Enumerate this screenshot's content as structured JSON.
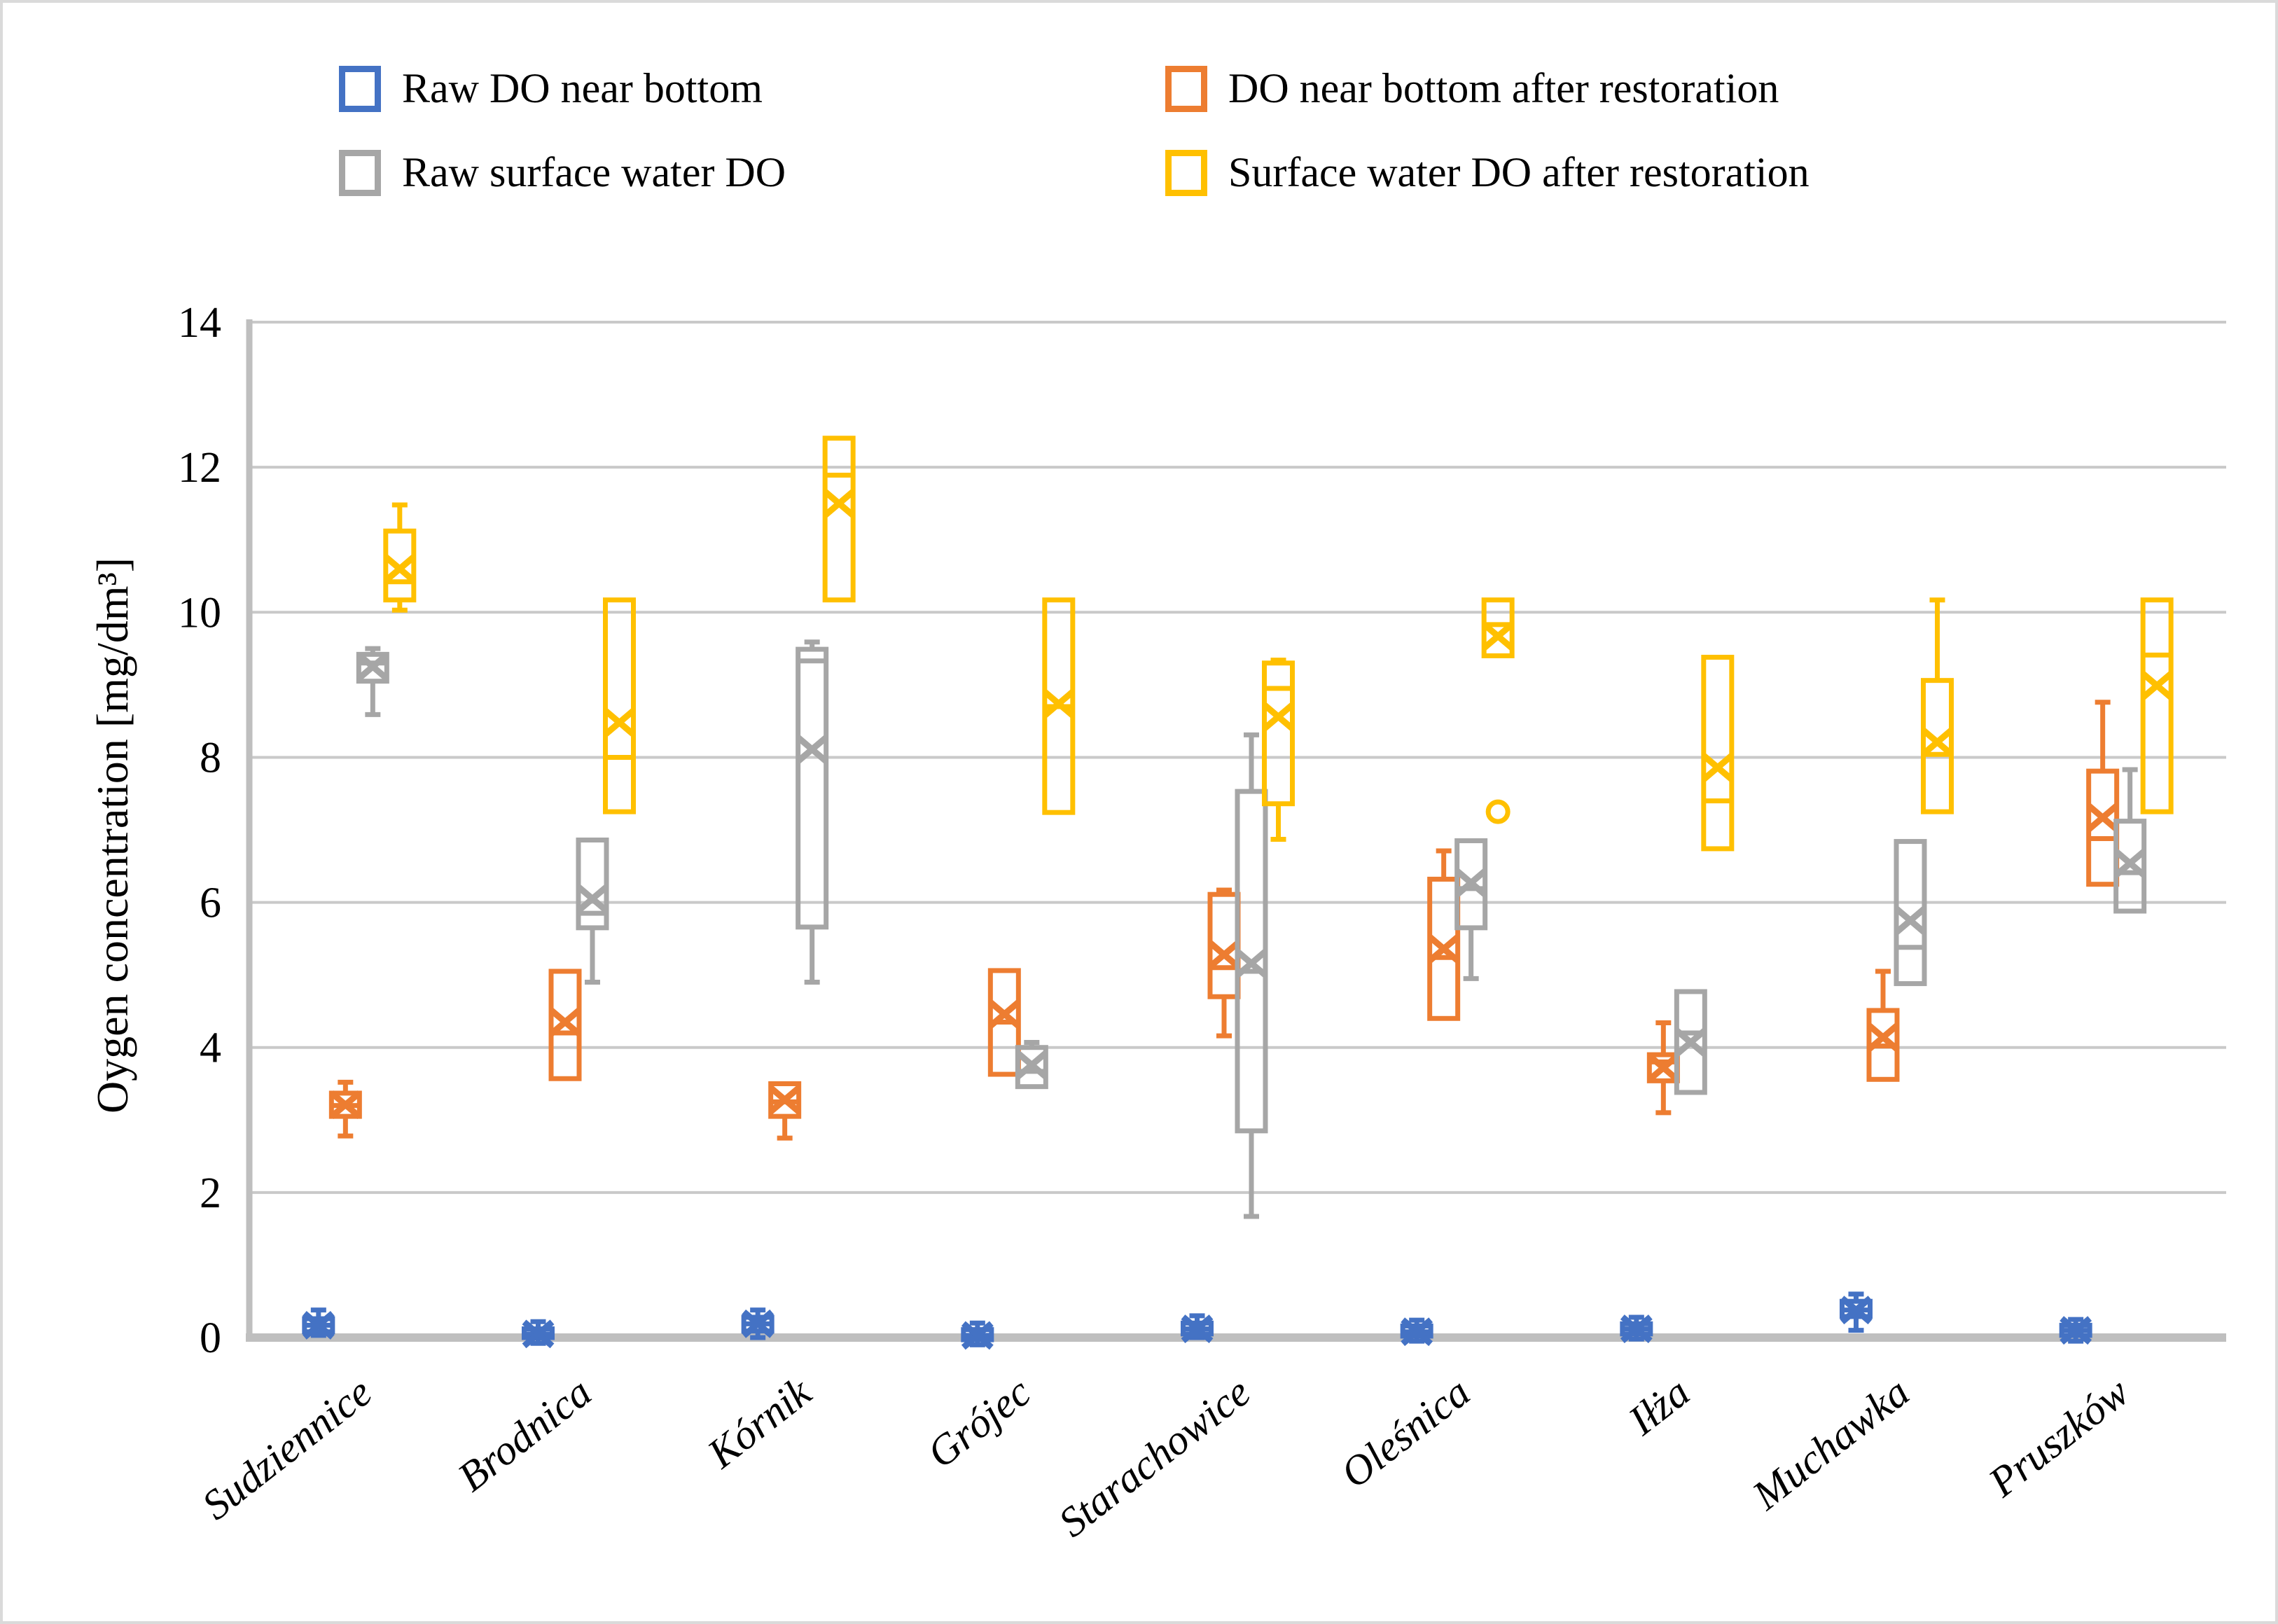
{
  "figure": {
    "background": "#ffffff",
    "border_color": "#dadada"
  },
  "colors": {
    "gridline": "#c9c9c9",
    "axis_line": "#bfbfbf",
    "text": "#000000"
  },
  "chart_data": {
    "type": "boxplot",
    "title": "",
    "xlabel": "",
    "ylabel": "Oygen concentration  [mg/dm³]",
    "ylim": [
      0,
      14
    ],
    "yticks": [
      0,
      2,
      4,
      6,
      8,
      10,
      12,
      14
    ],
    "grid": true,
    "legend_position": "top",
    "categories": [
      "Sudziennice",
      "Brodnica",
      "Kórnik",
      "Grójec",
      "Starachowice",
      "Oleśnica",
      "Iłża",
      "Muchawka",
      "Pruszków"
    ],
    "series": [
      {
        "name": "Raw DO near bottom",
        "color": "#4472C4",
        "boxes": [
          {
            "min": 0.03,
            "q1": 0.08,
            "med": 0.17,
            "q3": 0.26,
            "max": 0.38,
            "mean": 0.17
          },
          {
            "min": -0.08,
            "q1": 0.0,
            "med": 0.05,
            "q3": 0.12,
            "max": 0.22,
            "mean": 0.05
          },
          {
            "min": 0.0,
            "q1": 0.09,
            "med": 0.19,
            "q3": 0.28,
            "max": 0.38,
            "mean": 0.19
          },
          {
            "min": -0.1,
            "q1": -0.03,
            "med": 0.03,
            "q3": 0.11,
            "max": 0.2,
            "mean": 0.03
          },
          {
            "min": 0.0,
            "q1": 0.05,
            "med": 0.12,
            "q3": 0.2,
            "max": 0.3,
            "mean": 0.12
          },
          {
            "min": -0.05,
            "q1": 0.02,
            "med": 0.08,
            "q3": 0.16,
            "max": 0.24,
            "mean": 0.08
          },
          {
            "min": -0.02,
            "q1": 0.05,
            "med": 0.12,
            "q3": 0.19,
            "max": 0.28,
            "mean": 0.12
          },
          {
            "min": 0.1,
            "q1": 0.29,
            "med": 0.38,
            "q3": 0.5,
            "max": 0.6,
            "mean": 0.38
          },
          {
            "min": -0.05,
            "q1": 0.03,
            "med": 0.1,
            "q3": 0.17,
            "max": 0.25,
            "mean": 0.1
          }
        ]
      },
      {
        "name": "DO near bottom after restoration",
        "color": "#ED7D31",
        "boxes": [
          {
            "min": 2.78,
            "q1": 3.05,
            "med": 3.2,
            "q3": 3.37,
            "max": 3.52,
            "mean": 3.21
          },
          {
            "min": 3.57,
            "q1": 3.57,
            "med": 4.2,
            "q3": 5.05,
            "max": 5.05,
            "mean": 4.35
          },
          {
            "min": 2.75,
            "q1": 3.05,
            "med": 3.25,
            "q3": 3.5,
            "max": 3.5,
            "mean": 3.28
          },
          {
            "min": 3.63,
            "q1": 3.63,
            "med": 4.35,
            "q3": 5.06,
            "max": 5.06,
            "mean": 4.46
          },
          {
            "min": 4.16,
            "q1": 4.7,
            "med": 5.1,
            "q3": 6.11,
            "max": 6.17,
            "mean": 5.28
          },
          {
            "min": 4.4,
            "q1": 4.4,
            "med": 5.24,
            "q3": 6.32,
            "max": 6.71,
            "mean": 5.36
          },
          {
            "min": 3.1,
            "q1": 3.54,
            "med": 3.8,
            "q3": 3.9,
            "max": 4.34,
            "mean": 3.72
          },
          {
            "min": 3.56,
            "q1": 3.56,
            "med": 4.02,
            "q3": 4.51,
            "max": 5.05,
            "mean": 4.14
          },
          {
            "min": 6.25,
            "q1": 6.25,
            "med": 6.88,
            "q3": 7.81,
            "max": 8.76,
            "mean": 7.17
          }
        ]
      },
      {
        "name": "Raw surface water DO",
        "color": "#A6A6A6",
        "boxes": [
          {
            "min": 8.59,
            "q1": 9.05,
            "med": 9.3,
            "q3": 9.42,
            "max": 9.5,
            "mean": 9.25
          },
          {
            "min": 4.9,
            "q1": 5.65,
            "med": 5.85,
            "q3": 6.86,
            "max": 6.86,
            "mean": 6.05
          },
          {
            "min": 4.9,
            "q1": 5.66,
            "med": 9.33,
            "q3": 9.49,
            "max": 9.59,
            "mean": 8.11
          },
          {
            "min": 3.46,
            "q1": 3.46,
            "med": 3.67,
            "q3": 4.0,
            "max": 4.07,
            "mean": 3.76
          },
          {
            "min": 1.67,
            "q1": 2.85,
            "med": 5.05,
            "q3": 7.53,
            "max": 8.31,
            "mean": 5.16
          },
          {
            "min": 4.95,
            "q1": 5.65,
            "med": 6.19,
            "q3": 6.85,
            "max": 6.85,
            "mean": 6.27
          },
          {
            "min": 3.38,
            "q1": 3.38,
            "med": 4.2,
            "q3": 4.77,
            "max": 4.77,
            "mean": 4.07
          },
          {
            "min": 4.88,
            "q1": 4.88,
            "med": 5.38,
            "q3": 6.84,
            "max": 6.84,
            "mean": 5.75
          },
          {
            "min": 5.88,
            "q1": 5.88,
            "med": 6.41,
            "q3": 7.12,
            "max": 7.83,
            "mean": 6.54
          }
        ]
      },
      {
        "name": "Surface water DO after restoration",
        "color": "#FFC000",
        "boxes": [
          {
            "min": 10.03,
            "q1": 10.17,
            "med": 10.42,
            "q3": 11.12,
            "max": 11.48,
            "mean": 10.6
          },
          {
            "min": 7.25,
            "q1": 7.25,
            "med": 8.0,
            "q3": 10.17,
            "max": 10.17,
            "mean": 8.48
          },
          {
            "min": 10.17,
            "q1": 10.17,
            "med": 11.89,
            "q3": 12.4,
            "max": 12.4,
            "mean": 11.5
          },
          {
            "min": 7.24,
            "q1": 7.24,
            "med": 8.7,
            "q3": 10.17,
            "max": 10.17,
            "mean": 8.74
          },
          {
            "min": 6.87,
            "q1": 7.36,
            "med": 8.95,
            "q3": 9.3,
            "max": 9.34,
            "mean": 8.56
          },
          {
            "min": 9.4,
            "q1": 9.4,
            "med": 9.83,
            "q3": 10.17,
            "max": 10.17,
            "mean": 9.67,
            "outliers": [
              7.25
            ]
          },
          {
            "min": 6.74,
            "q1": 6.74,
            "med": 7.4,
            "q3": 9.38,
            "max": 9.38,
            "mean": 7.86
          },
          {
            "min": 7.25,
            "q1": 7.25,
            "med": 8.04,
            "q3": 9.06,
            "max": 10.17,
            "mean": 8.21
          },
          {
            "min": 7.25,
            "q1": 7.25,
            "med": 9.41,
            "q3": 10.17,
            "max": 10.17,
            "mean": 8.99
          }
        ]
      }
    ]
  }
}
